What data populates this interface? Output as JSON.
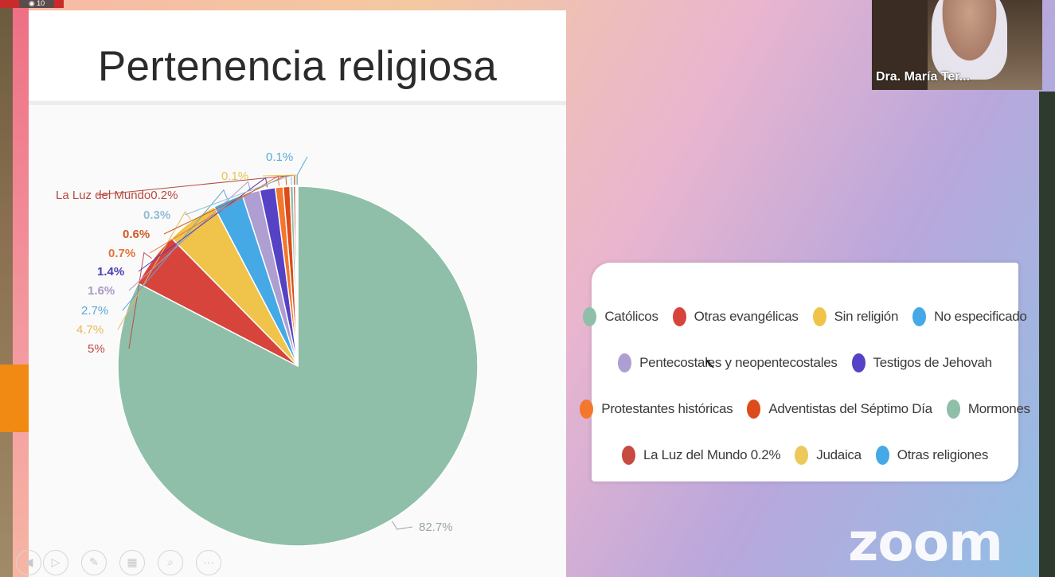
{
  "slide": {
    "title": "Pertenencia religiosa"
  },
  "chart_data": {
    "type": "pie",
    "title": "Pertenencia religiosa",
    "slices": [
      {
        "name": "Católicos",
        "value": 82.7,
        "label": "82.7%",
        "color": "#8fbfa8"
      },
      {
        "name": "Otras evangélicas",
        "value": 5.0,
        "label": "5%",
        "color": "#d7443c"
      },
      {
        "name": "Sin religión",
        "value": 4.7,
        "label": "4.7%",
        "color": "#f0c44a"
      },
      {
        "name": "No especificado",
        "value": 2.7,
        "label": "2.7%",
        "color": "#45a9e6"
      },
      {
        "name": "Pentecostales y neopentecostales",
        "value": 1.6,
        "label": "1.6%",
        "color": "#ae9ed1"
      },
      {
        "name": "Testigos de Jehovah",
        "value": 1.4,
        "label": "1.4%",
        "color": "#5542c4"
      },
      {
        "name": "Protestantes históricas",
        "value": 0.7,
        "label": "0.7%",
        "color": "#f4772e"
      },
      {
        "name": "Adventistas del Séptimo Día",
        "value": 0.6,
        "label": "0.6%",
        "color": "#dc4b19"
      },
      {
        "name": "Mormones",
        "value": 0.3,
        "label": "0.3%",
        "color": "#8fbfa8"
      },
      {
        "name": "La Luz del Mundo",
        "value": 0.2,
        "label": "La Luz del Mundo0.2%",
        "color": "#c64a3f"
      },
      {
        "name": "Judaica",
        "value": 0.1,
        "label": "0.1%",
        "color": "#ecc95a"
      },
      {
        "name": "Otras religiones",
        "value": 0.1,
        "label": "0.1%",
        "color": "#45a9e6"
      }
    ],
    "legend": [
      [
        "Católicos",
        "Otras evangélicas",
        "Sin religión",
        "No especificado"
      ],
      [
        "Pentecostales y neopentecostales",
        "Testigos de Jehovah"
      ],
      [
        "Protestantes históricas",
        "Adventistas del Séptimo Día",
        "Mormones"
      ],
      [
        "La Luz del Mundo 0.2%",
        "Judaica",
        "Otras religiones"
      ]
    ],
    "legend_placement": "right"
  },
  "legend_colors": {
    "Católicos": "#8fbfa8",
    "Otras evangélicas": "#d7443c",
    "Sin religión": "#f0c44a",
    "No especificado": "#45a9e6",
    "Pentecostales y neopentecostales": "#ae9ed1",
    "Testigos de Jehovah": "#5542c4",
    "Protestantes históricas": "#f4772e",
    "Adventistas del Séptimo Día": "#dc4b19",
    "Mormones": "#8fbfa8",
    "La Luz del Mundo 0.2%": "#c64a3f",
    "Judaica": "#ecc95a",
    "Otras religiones": "#45a9e6"
  },
  "video": {
    "participant_name": "Dra. María Ter..."
  },
  "app": {
    "logo": "zoom",
    "viewer_count": "10"
  },
  "toolbar": {
    "icons": [
      "previous-icon",
      "play-icon",
      "pen-icon",
      "slides-icon",
      "search-icon",
      "more-icon"
    ]
  }
}
